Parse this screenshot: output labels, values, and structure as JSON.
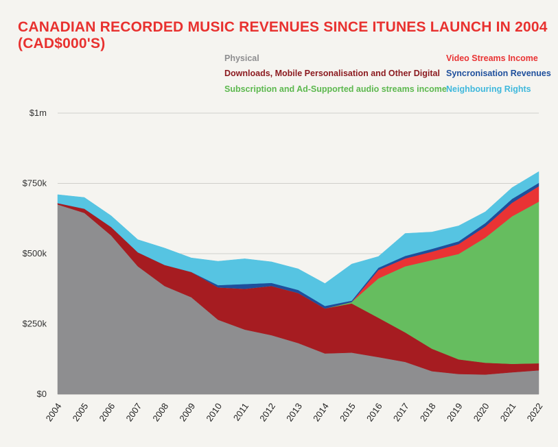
{
  "chart_data": {
    "type": "area",
    "title": "CANADIAN RECORDED MUSIC REVENUES SINCE ITUNES LAUNCH IN 2004 (CAD$000'S)",
    "xlabel": "",
    "ylabel": "",
    "stacked": true,
    "ylim": [
      0,
      1000000
    ],
    "y_ticks": [
      0,
      250000,
      500000,
      750000,
      1000000
    ],
    "y_tick_labels": [
      "$0",
      "$250k",
      "$500k",
      "$750k",
      "$1m"
    ],
    "grid": true,
    "legend_position": "top-right",
    "categories": [
      "2004",
      "2005",
      "2006",
      "2007",
      "2008",
      "2009",
      "2010",
      "2011",
      "2012",
      "2013",
      "2014",
      "2015",
      "2016",
      "2017",
      "2018",
      "2019",
      "2020",
      "2021",
      "2022"
    ],
    "series": [
      {
        "name": "Physical",
        "color": "#8e8e90",
        "values": [
          675000,
          645000,
          565000,
          455000,
          385000,
          345000,
          265000,
          230000,
          210000,
          182000,
          145000,
          148000,
          132000,
          115000,
          82000,
          72000,
          70000,
          78000,
          85000
        ]
      },
      {
        "name": "Downloads, Mobile Personalisation and Other Digital",
        "color": "#a61c21",
        "values": [
          5000,
          15000,
          30000,
          50000,
          75000,
          90000,
          115000,
          145000,
          175000,
          178000,
          160000,
          175000,
          140000,
          105000,
          80000,
          52000,
          42000,
          30000,
          25000
        ]
      },
      {
        "name": "Subscription and Ad-Supported audio streams income",
        "color": "#66bd5f",
        "values": [
          0,
          0,
          0,
          0,
          0,
          0,
          0,
          0,
          0,
          0,
          0,
          5000,
          140000,
          235000,
          315000,
          375000,
          445000,
          525000,
          575000
        ]
      },
      {
        "name": "Video Streams Income",
        "color": "#e93334",
        "values": [
          0,
          0,
          0,
          0,
          0,
          0,
          0,
          0,
          0,
          0,
          0,
          0,
          30000,
          28000,
          30000,
          35000,
          40000,
          48000,
          55000
        ]
      },
      {
        "name": "Syncronisation Revenues",
        "color": "#1e4f9c",
        "values": [
          0,
          0,
          0,
          0,
          0,
          0,
          8000,
          17000,
          11000,
          11000,
          9000,
          5000,
          8000,
          9000,
          10000,
          10000,
          12000,
          14000,
          12000
        ]
      },
      {
        "name": "Neighbouring Rights",
        "color": "#56c4e2",
        "values": [
          30000,
          40000,
          40000,
          45000,
          60000,
          50000,
          85000,
          90000,
          75000,
          75000,
          80000,
          130000,
          40000,
          80000,
          60000,
          55000,
          40000,
          40000,
          40000
        ]
      }
    ]
  },
  "colors": {
    "background": "#f5f4f0",
    "title": "#e8312f",
    "gridline": "#d0cfcb"
  },
  "legend": {
    "col1": [
      {
        "label": "Physical",
        "color": "#8e8e90"
      },
      {
        "label": "Downloads, Mobile Personalisation and Other Digital",
        "color": "#8b1a1f"
      },
      {
        "label": "Subscription and Ad-Supported audio streams income",
        "color": "#5cb84e"
      }
    ],
    "col2": [
      {
        "label": "Video Streams Income",
        "color": "#e93334"
      },
      {
        "label": "Syncronisation Revenues",
        "color": "#1e4f9c"
      },
      {
        "label": "Neighbouring Rights",
        "color": "#3fb8dc"
      }
    ]
  }
}
